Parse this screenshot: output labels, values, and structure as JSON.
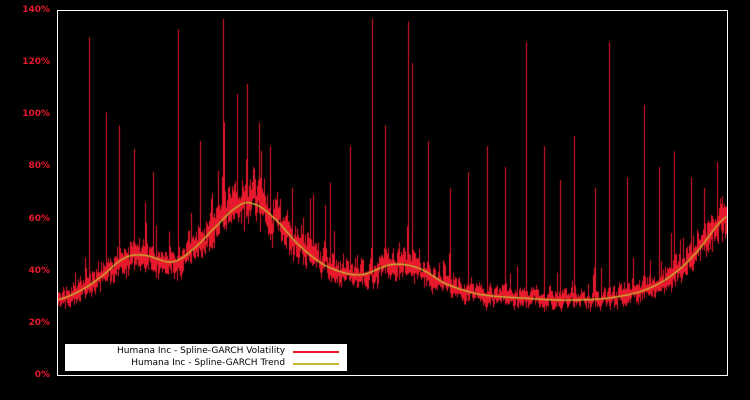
{
  "colors": {
    "background": "#000000",
    "plot_border": "#ffffff",
    "volatility": "#e8192d",
    "trend": "#c8b832",
    "tick_label": "#e8192d",
    "legend_background": "#ffffff",
    "legend_text": "#000000"
  },
  "y_axis": {
    "tick_labels": [
      "0%",
      "20%",
      "40%",
      "60%",
      "80%",
      "100%",
      "120%",
      "140%"
    ],
    "tick_values": [
      0,
      20,
      40,
      60,
      80,
      100,
      120,
      140
    ]
  },
  "x_axis": {
    "tick_labels": []
  },
  "legend": {
    "items": [
      {
        "label": "Humana Inc - Spline-GARCH Volatility",
        "color": "#e8192d"
      },
      {
        "label": "Humana Inc - Spline-GARCH Trend",
        "color": "#c8b832"
      }
    ]
  },
  "chart_data": {
    "type": "line",
    "title": "",
    "xlabel": "",
    "ylabel": "",
    "ylim": [
      0,
      140
    ],
    "y_unit": "percent",
    "grid": false,
    "x_axis_labels_visible": false,
    "legend_position": "bottom-left",
    "series": [
      {
        "name": "Humana Inc - Spline-GARCH Volatility",
        "type": "noisy-line",
        "color": "#e8192d",
        "baseline": "trend",
        "noise": {
          "seed": 11,
          "ar": 0.5,
          "sigma": 2.4,
          "band_lo": [
            1.2,
            4.2
          ],
          "band_hi": [
            1.2,
            5.0
          ],
          "minor_spike_prob": 0.12,
          "minor_spike_max": 24,
          "dip_prob": 0.04,
          "dip_max": 5,
          "level_ref": 44
        },
        "major_spikes": [
          [
            0.046,
            130
          ],
          [
            0.072,
            101
          ],
          [
            0.091,
            96
          ],
          [
            0.113,
            87
          ],
          [
            0.142,
            78
          ],
          [
            0.18,
            133
          ],
          [
            0.213,
            90
          ],
          [
            0.246,
            137
          ],
          [
            0.267,
            108
          ],
          [
            0.283,
            112
          ],
          [
            0.3,
            97
          ],
          [
            0.317,
            88
          ],
          [
            0.35,
            72
          ],
          [
            0.377,
            68
          ],
          [
            0.407,
            74
          ],
          [
            0.437,
            88
          ],
          [
            0.469,
            137
          ],
          [
            0.489,
            96
          ],
          [
            0.523,
            136
          ],
          [
            0.529,
            120
          ],
          [
            0.553,
            90
          ],
          [
            0.586,
            72
          ],
          [
            0.613,
            78
          ],
          [
            0.642,
            88
          ],
          [
            0.668,
            80
          ],
          [
            0.7,
            128
          ],
          [
            0.727,
            88
          ],
          [
            0.75,
            75
          ],
          [
            0.772,
            92
          ],
          [
            0.802,
            72
          ],
          [
            0.824,
            128
          ],
          [
            0.851,
            76
          ],
          [
            0.876,
            104
          ],
          [
            0.899,
            80
          ],
          [
            0.921,
            86
          ],
          [
            0.946,
            76
          ],
          [
            0.966,
            72
          ],
          [
            0.985,
            82
          ]
        ]
      },
      {
        "name": "Humana Inc - Spline-GARCH Trend",
        "type": "smooth-line",
        "color": "#c8b832",
        "points": [
          [
            0.0,
            29
          ],
          [
            0.03,
            32
          ],
          [
            0.06,
            37
          ],
          [
            0.1,
            45
          ],
          [
            0.13,
            46
          ],
          [
            0.17,
            43.5
          ],
          [
            0.2,
            48
          ],
          [
            0.24,
            58
          ],
          [
            0.27,
            65
          ],
          [
            0.29,
            66
          ],
          [
            0.32,
            61
          ],
          [
            0.36,
            50
          ],
          [
            0.4,
            42
          ],
          [
            0.45,
            38.5
          ],
          [
            0.5,
            42.5
          ],
          [
            0.54,
            41
          ],
          [
            0.58,
            35
          ],
          [
            0.63,
            31
          ],
          [
            0.7,
            29.5
          ],
          [
            0.76,
            28.8
          ],
          [
            0.82,
            29.5
          ],
          [
            0.87,
            32
          ],
          [
            0.91,
            37
          ],
          [
            0.95,
            46
          ],
          [
            1.0,
            61
          ]
        ]
      }
    ]
  }
}
